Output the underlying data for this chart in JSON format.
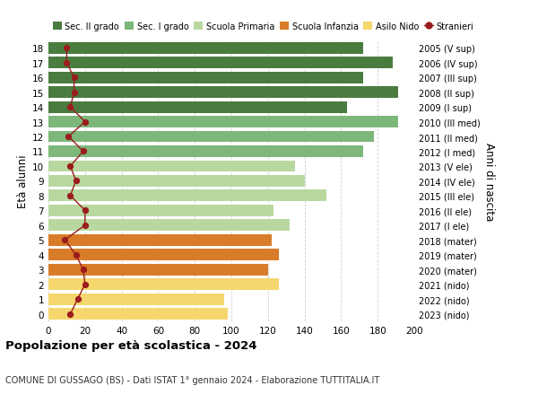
{
  "ages": [
    18,
    17,
    16,
    15,
    14,
    13,
    12,
    11,
    10,
    9,
    8,
    7,
    6,
    5,
    4,
    3,
    2,
    1,
    0
  ],
  "years": [
    "2005 (V sup)",
    "2006 (IV sup)",
    "2007 (III sup)",
    "2008 (II sup)",
    "2009 (I sup)",
    "2010 (III med)",
    "2011 (II med)",
    "2012 (I med)",
    "2013 (V ele)",
    "2014 (IV ele)",
    "2015 (III ele)",
    "2016 (II ele)",
    "2017 (I ele)",
    "2018 (mater)",
    "2019 (mater)",
    "2020 (mater)",
    "2021 (nido)",
    "2022 (nido)",
    "2023 (nido)"
  ],
  "bar_values": [
    172,
    188,
    172,
    191,
    163,
    191,
    178,
    172,
    135,
    140,
    152,
    123,
    132,
    122,
    126,
    120,
    126,
    96,
    98
  ],
  "stranieri": [
    10,
    10,
    14,
    14,
    12,
    20,
    11,
    19,
    12,
    15,
    12,
    20,
    20,
    9,
    15,
    19,
    20,
    16,
    12
  ],
  "bar_colors": [
    "#4a7c3f",
    "#4a7c3f",
    "#4a7c3f",
    "#4a7c3f",
    "#4a7c3f",
    "#7db87a",
    "#7db87a",
    "#7db87a",
    "#b8d8a0",
    "#b8d8a0",
    "#b8d8a0",
    "#b8d8a0",
    "#b8d8a0",
    "#d97c2a",
    "#d97c2a",
    "#d97c2a",
    "#f5d76e",
    "#f5d76e",
    "#f5d76e"
  ],
  "legend_labels": [
    "Sec. II grado",
    "Sec. I grado",
    "Scuola Primaria",
    "Scuola Infanzia",
    "Asilo Nido",
    "Stranieri"
  ],
  "legend_colors": [
    "#4a7c3f",
    "#7db87a",
    "#b8d8a0",
    "#d97c2a",
    "#f5d76e",
    "#9b1c1c"
  ],
  "stranieri_color": "#9b1c1c",
  "title": "Popolazione per età scolastica - 2024",
  "subtitle": "COMUNE DI GUSSAGO (BS) - Dati ISTAT 1° gennaio 2024 - Elaborazione TUTTITALIA.IT",
  "ylabel_left": "Età alunni",
  "ylabel_right": "Anni di nascita",
  "xlim": [
    0,
    200
  ],
  "xticks": [
    0,
    20,
    40,
    60,
    80,
    100,
    120,
    140,
    160,
    180,
    200
  ],
  "background_color": "#ffffff",
  "grid_color": "#d0d0d0"
}
